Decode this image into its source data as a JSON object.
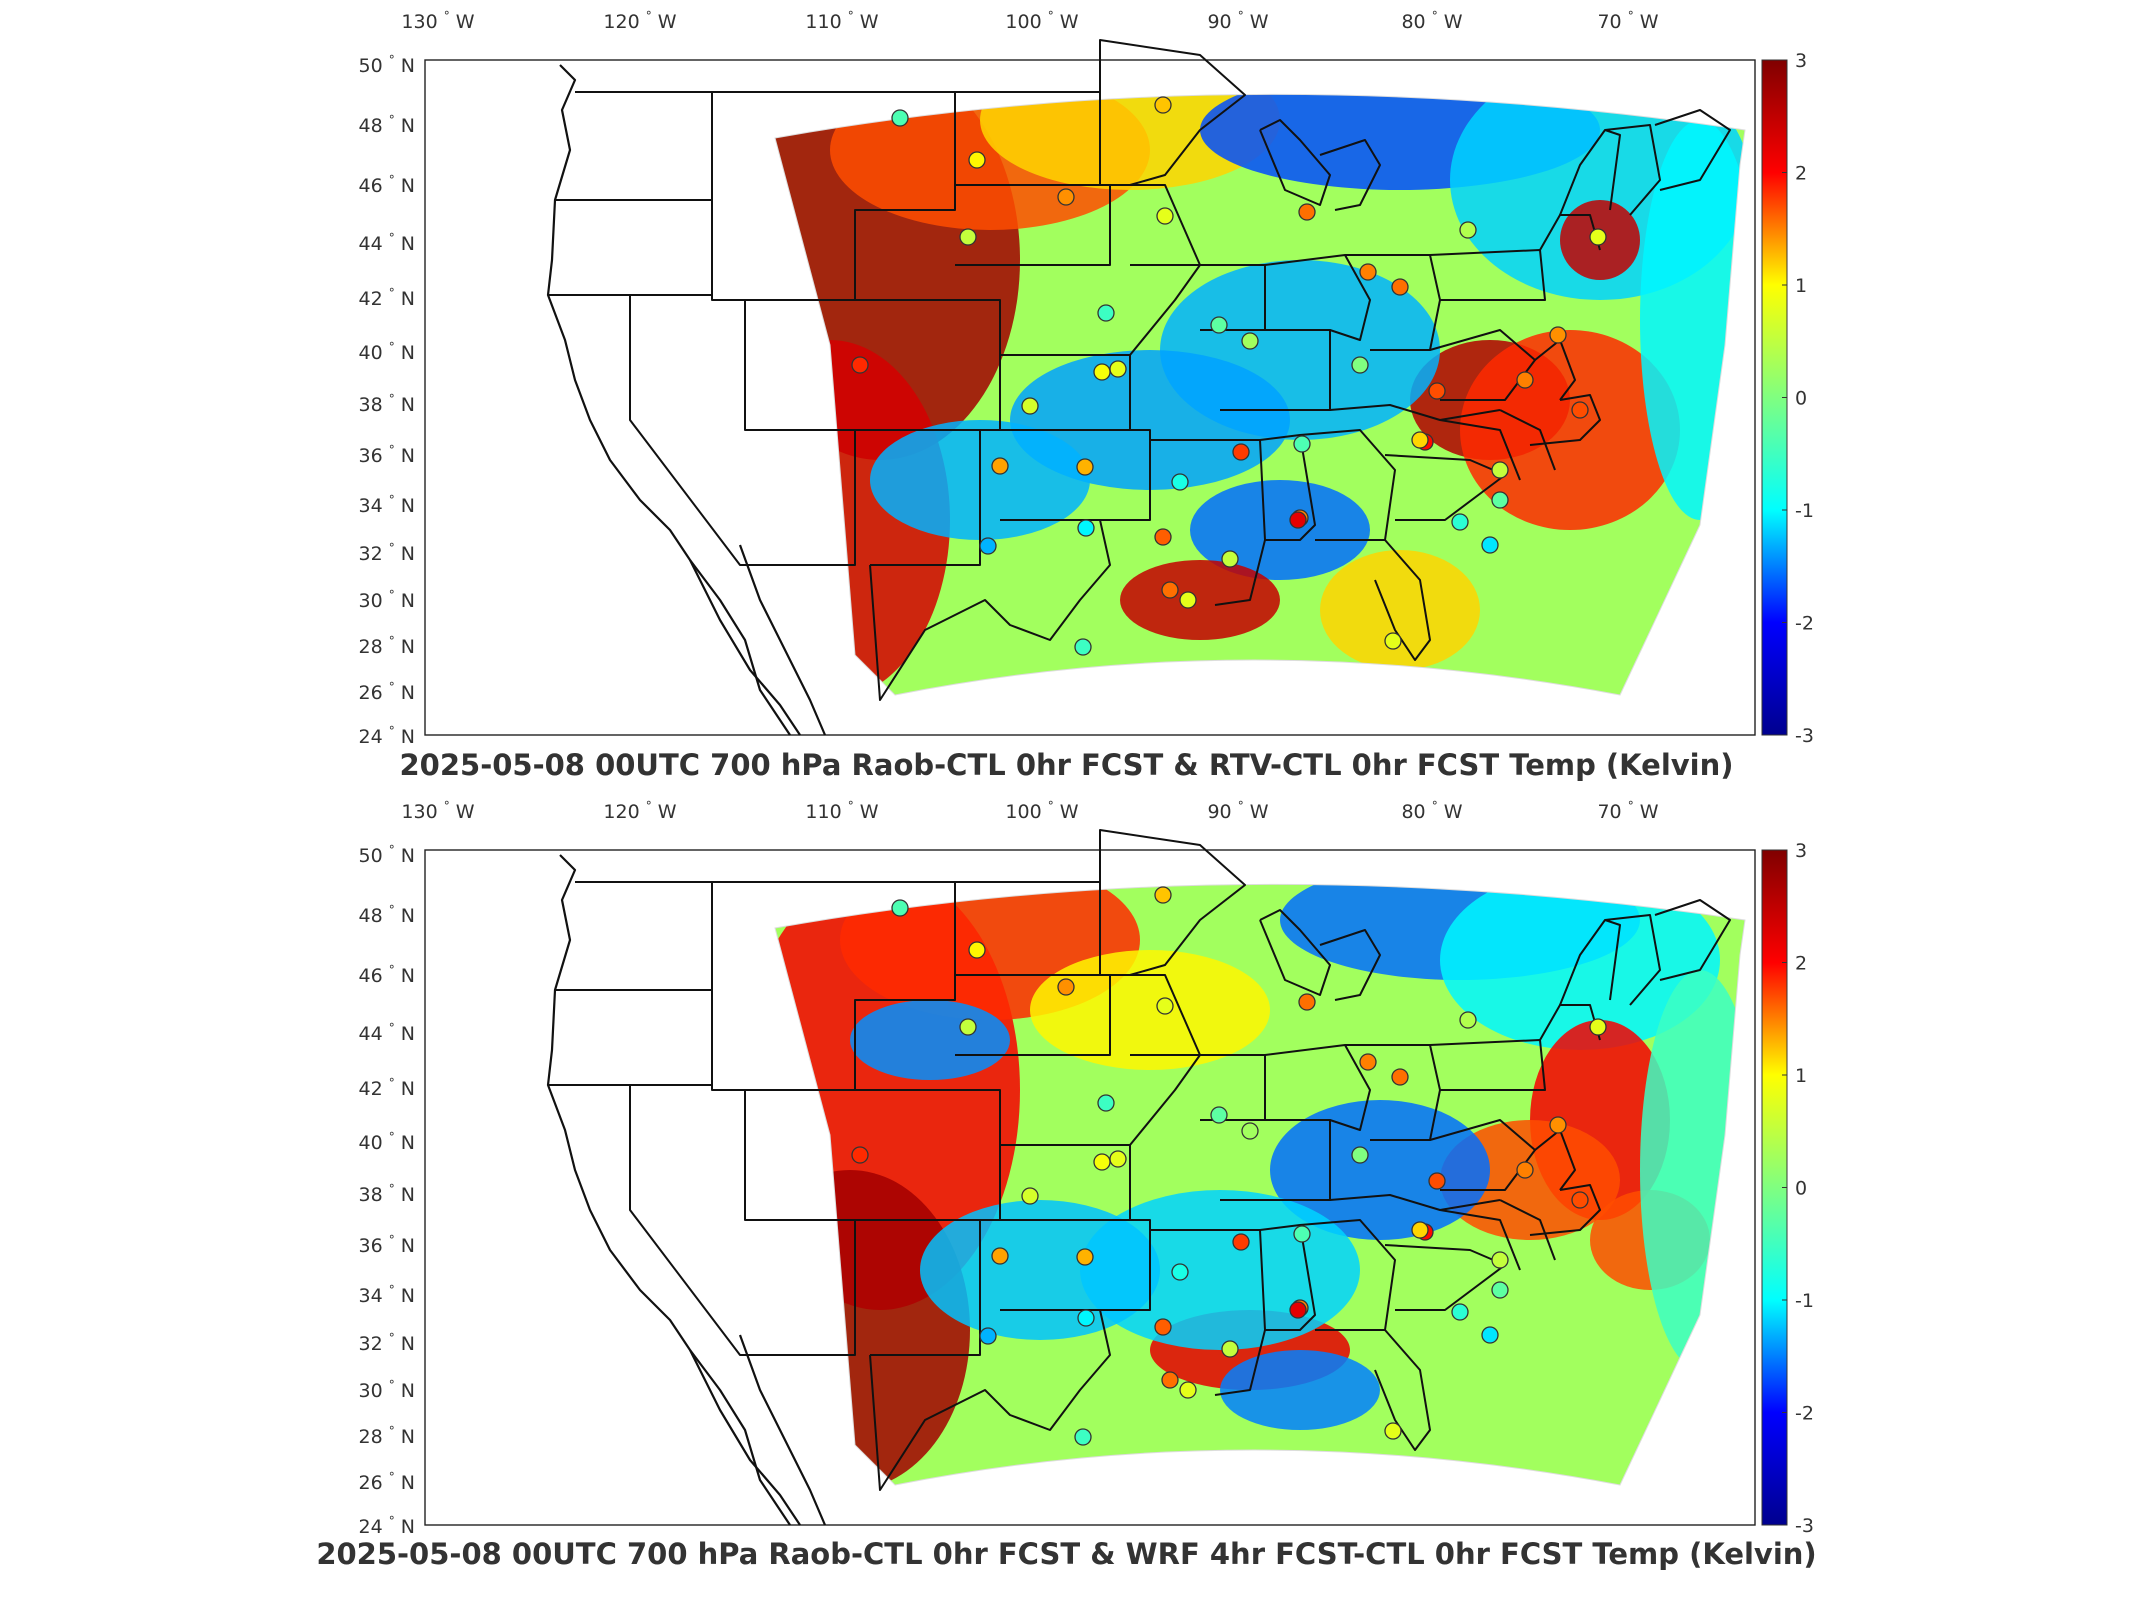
{
  "panels": [
    {
      "title": "2025-05-08 00UTC 700 hPa Raob-CTL 0hr FCST & RTV-CTL 0hr FCST Temp (Kelvin)"
    },
    {
      "title": "2025-05-08 00UTC 700 hPa Raob-CTL 0hr FCST & WRF 4hr FCST-CTL 0hr FCST Temp (Kelvin)"
    }
  ],
  "axes": {
    "lon_labels": [
      "130",
      "120",
      "110",
      "100",
      "90",
      "80",
      "70"
    ],
    "lon_suffix": "W",
    "lat_labels": [
      "50",
      "48",
      "46",
      "44",
      "42",
      "40",
      "38",
      "36",
      "34",
      "32",
      "30",
      "28",
      "26",
      "24"
    ],
    "lat_suffix": "N",
    "degree_symbol": "°"
  },
  "colorbar": {
    "ticks": [
      "3",
      "2",
      "1",
      "0",
      "-1",
      "-2",
      "-3"
    ],
    "min": -3,
    "max": 3,
    "colormap": "jet",
    "colors": [
      "#00008f",
      "#0000ff",
      "#00ffff",
      "#80ff80",
      "#ffff00",
      "#ff0000",
      "#800000"
    ]
  },
  "chart_data": [
    {
      "type": "map",
      "field": "Temp difference (Kelvin)",
      "levels_hpa": 700,
      "lon_range": [
        -131,
        -64
      ],
      "lat_range": [
        24,
        50
      ],
      "raob_station_values": [
        -0.3,
        0.8,
        1.4,
        1.1,
        0.4,
        0.6,
        -0.4,
        1.6,
        1.5,
        -0.2,
        0.2,
        0.7,
        0.5,
        0.6,
        2.0,
        1.3,
        1.2,
        -0.6,
        -1.2,
        -0.8,
        1.9,
        -0.3,
        2.2,
        1.8,
        0.0,
        0.4,
        1.7,
        1.5,
        0.6,
        -0.4,
        1.6,
        2.4,
        0.4,
        -0.9,
        -0.2,
        0.3,
        1.6,
        1.0,
        1.5,
        -0.5,
        0.6,
        1.4,
        1.8,
        0.6
      ]
    },
    {
      "type": "map",
      "field": "Temp difference (Kelvin)",
      "levels_hpa": 700,
      "lon_range": [
        -131,
        -64
      ],
      "lat_range": [
        24,
        50
      ],
      "raob_station_values": [
        -0.3,
        0.8,
        1.4,
        1.1,
        0.4,
        0.6,
        -0.4,
        1.6,
        1.5,
        -0.2,
        0.2,
        0.7,
        0.5,
        0.6,
        2.0,
        1.3,
        1.2,
        -0.6,
        -1.2,
        -0.8,
        1.9,
        -0.3,
        2.2,
        1.8,
        0.0,
        0.4,
        1.7,
        1.5,
        0.6,
        -0.4,
        1.6,
        2.4,
        0.4,
        -0.9,
        -0.2,
        0.3,
        1.6,
        1.0,
        1.5,
        -0.5,
        0.6,
        1.4,
        1.8,
        0.6
      ]
    }
  ]
}
